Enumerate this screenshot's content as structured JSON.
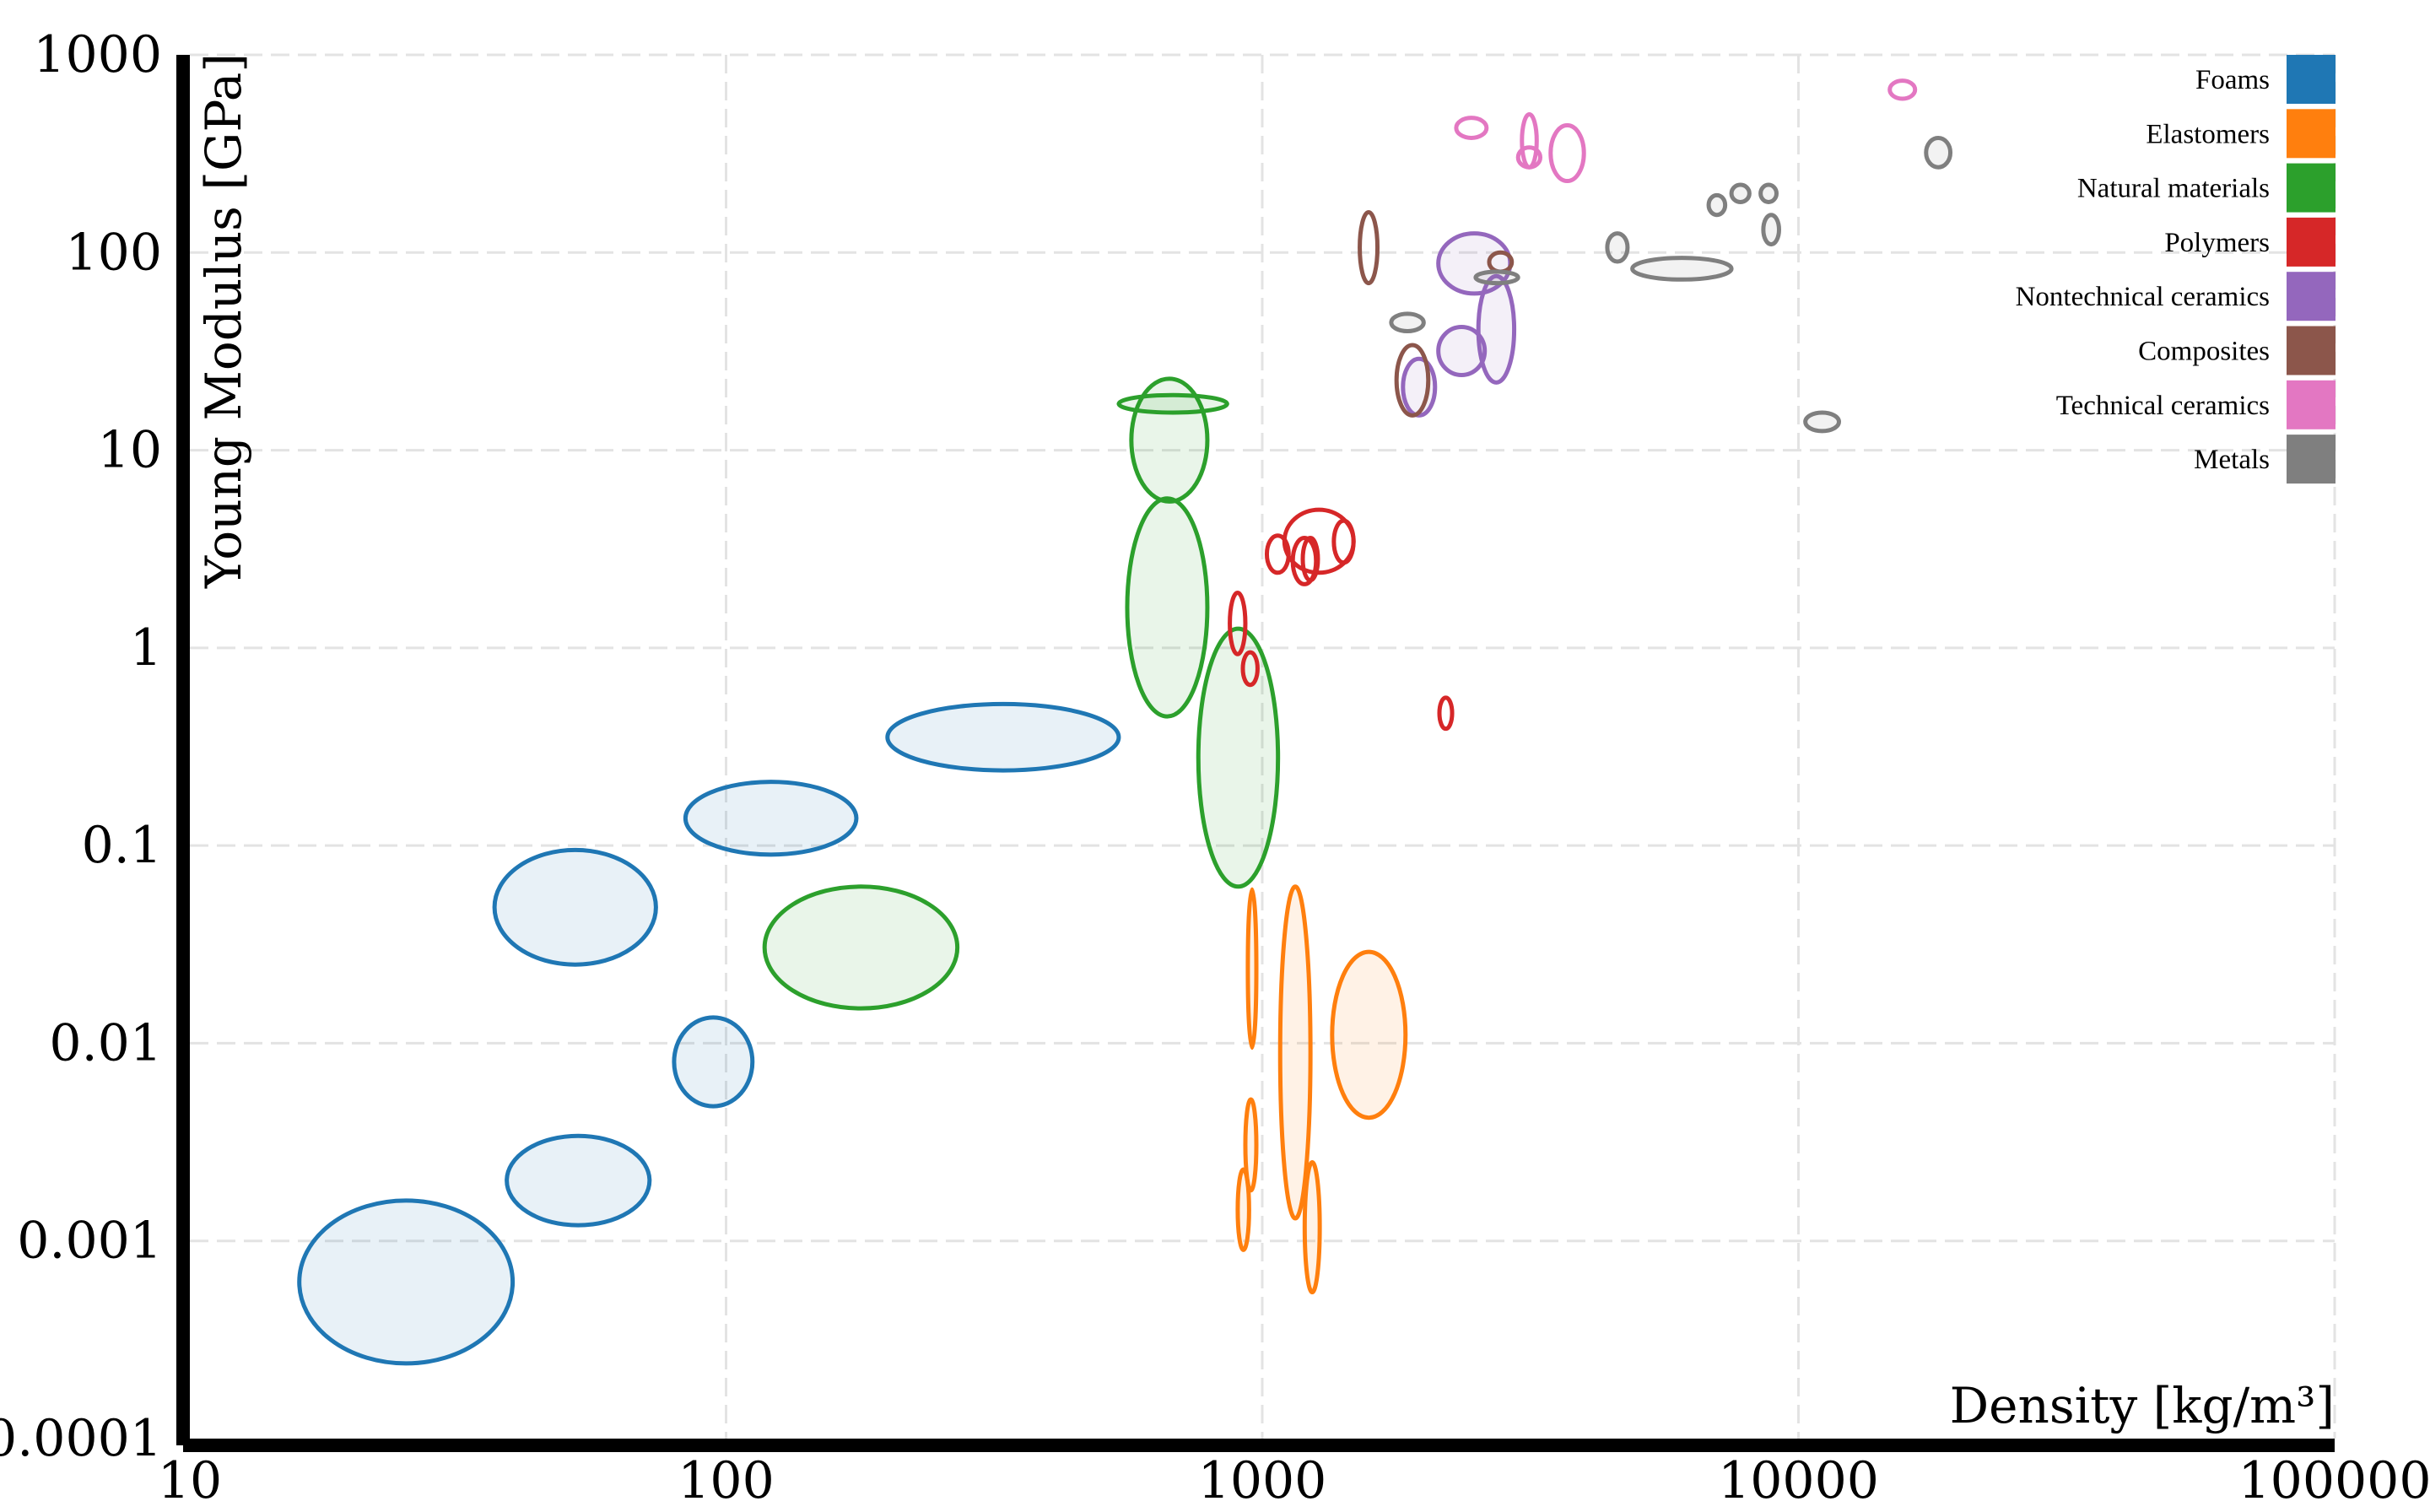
{
  "chart_data": {
    "type": "scatter",
    "title": "",
    "xlabel": "Density [kg/m³]",
    "ylabel": "Young Modulus [GPa]",
    "x_scale": "log",
    "y_scale": "log",
    "xlim": [
      10,
      100000
    ],
    "ylim": [
      0.0001,
      1000
    ],
    "x_ticks": [
      "10",
      "100",
      "1000",
      "10000",
      "100000"
    ],
    "y_ticks": [
      "0.0001",
      "0.001",
      "0.01",
      "0.1",
      "1",
      "10",
      "100",
      "1000"
    ],
    "grid": true,
    "legend_position": "top-right",
    "mark": "ellipse (density range × modulus range)",
    "series": [
      {
        "name": "Foams",
        "color": "#1f77b4",
        "filled": true,
        "items": [
          {
            "density": [
              16,
              40
            ],
            "modulus": [
              0.00024,
              0.0016
            ]
          },
          {
            "density": [
              39,
              72
            ],
            "modulus": [
              0.0012,
              0.0034
            ]
          },
          {
            "density": [
              80,
              112
            ],
            "modulus": [
              0.0048,
              0.0135
            ]
          },
          {
            "density": [
              37,
              74
            ],
            "modulus": [
              0.025,
              0.095
            ]
          },
          {
            "density": [
              84,
              175
            ],
            "modulus": [
              0.09,
              0.21
            ]
          },
          {
            "density": [
              200,
              540
            ],
            "modulus": [
              0.24,
              0.52
            ]
          }
        ]
      },
      {
        "name": "Elastomers",
        "color": "#ff7f0e",
        "filled": true,
        "items": [
          {
            "density": [
              940,
              975
            ],
            "modulus": [
              0.0095,
              0.06
            ]
          },
          {
            "density": [
              1080,
              1230
            ],
            "modulus": [
              0.0013,
              0.062
            ]
          },
          {
            "density": [
              1350,
              1850
            ],
            "modulus": [
              0.0042,
              0.029
            ]
          },
          {
            "density": [
              930,
              975
            ],
            "modulus": [
              0.0018,
              0.0052
            ]
          },
          {
            "density": [
              900,
              945
            ],
            "modulus": [
              0.0009,
              0.0023
            ]
          },
          {
            "density": [
              1200,
              1280
            ],
            "modulus": [
              0.00055,
              0.0025
            ]
          }
        ]
      },
      {
        "name": "Natural materials",
        "color": "#2ca02c",
        "filled": true,
        "items": [
          {
            "density": [
              118,
              270
            ],
            "modulus": [
              0.015,
              0.062
            ]
          },
          {
            "density": [
              760,
              1070
            ],
            "modulus": [
              0.062,
              1.25
            ]
          },
          {
            "density": [
              560,
              790
            ],
            "modulus": [
              0.45,
              5.7
            ]
          },
          {
            "density": [
              570,
              790
            ],
            "modulus": [
              5.5,
              23
            ]
          },
          {
            "density": [
              540,
              860
            ],
            "modulus": [
              15.5,
              19
            ]
          }
        ]
      },
      {
        "name": "Polymers",
        "color": "#d62728",
        "filled": false,
        "items": [
          {
            "density": [
              1100,
              1480
            ],
            "modulus": [
              2.4,
              5.0
            ]
          },
          {
            "density": [
              1020,
              1120
            ],
            "modulus": [
              2.4,
              3.7
            ]
          },
          {
            "density": [
              1140,
              1260
            ],
            "modulus": [
              2.1,
              3.6
            ]
          },
          {
            "density": [
              1360,
              1480
            ],
            "modulus": [
              2.7,
              4.4
            ]
          },
          {
            "density": [
              1190,
              1270
            ],
            "modulus": [
              2.2,
              3.6
            ]
          },
          {
            "density": [
              870,
              930
            ],
            "modulus": [
              0.93,
              1.9
            ]
          },
          {
            "density": [
              920,
              980
            ],
            "modulus": [
              0.65,
              0.95
            ]
          },
          {
            "density": [
              2140,
              2260
            ],
            "modulus": [
              0.39,
              0.56
            ]
          }
        ]
      },
      {
        "name": "Nontechnical ceramics",
        "color": "#9467bd",
        "filled": true,
        "items": [
          {
            "density": [
              2130,
              2900
            ],
            "modulus": [
              62,
              125
            ]
          },
          {
            "density": [
              2530,
              2950
            ],
            "modulus": [
              22,
              76
            ]
          },
          {
            "density": [
              2130,
              2600
            ],
            "modulus": [
              24,
              42
            ]
          },
          {
            "density": [
              1830,
              2100
            ],
            "modulus": [
              15,
              29
            ]
          }
        ]
      },
      {
        "name": "Composites",
        "color": "#8c564b",
        "filled": false,
        "items": [
          {
            "density": [
              1520,
              1640
            ],
            "modulus": [
              70,
              160
            ]
          },
          {
            "density": [
              1780,
              2040
            ],
            "modulus": [
              15,
              34
            ]
          },
          {
            "density": [
              2650,
              2920
            ],
            "modulus": [
              80,
              100
            ]
          }
        ]
      },
      {
        "name": "Technical ceramics",
        "color": "#e377c2",
        "filled": false,
        "items": [
          {
            "density": [
              2300,
              2620
            ],
            "modulus": [
              380,
              480
            ]
          },
          {
            "density": [
              3050,
              3250
            ],
            "modulus": [
              270,
              500
            ]
          },
          {
            "density": [
              3000,
              3300
            ],
            "modulus": [
              270,
              340
            ]
          },
          {
            "density": [
              3450,
              3980
            ],
            "modulus": [
              230,
              440
            ]
          },
          {
            "density": [
              14800,
              16500
            ],
            "modulus": [
              600,
              740
            ]
          }
        ]
      },
      {
        "name": "Metals",
        "color": "#7f7f7f",
        "filled": true,
        "items": [
          {
            "density": [
              1740,
              2000
            ],
            "modulus": [
              40,
              49
            ]
          },
          {
            "density": [
              2500,
              3000
            ],
            "modulus": [
              70,
              80
            ]
          },
          {
            "density": [
              4400,
              4800
            ],
            "modulus": [
              90,
              125
            ]
          },
          {
            "density": [
              4900,
              7500
            ],
            "modulus": [
              73,
              94
            ]
          },
          {
            "density": [
              6800,
              7300
            ],
            "modulus": [
              155,
              195
            ]
          },
          {
            "density": [
              7500,
              8100
            ],
            "modulus": [
              180,
              220
            ]
          },
          {
            "density": [
              8500,
              9100
            ],
            "modulus": [
              180,
              220
            ]
          },
          {
            "density": [
              8600,
              9200
            ],
            "modulus": [
              110,
              155
            ]
          },
          {
            "density": [
              10300,
              11900
            ],
            "modulus": [
              12.5,
              15.5
            ]
          },
          {
            "density": [
              17300,
              19200
            ],
            "modulus": [
              270,
              380
            ]
          }
        ]
      }
    ]
  }
}
